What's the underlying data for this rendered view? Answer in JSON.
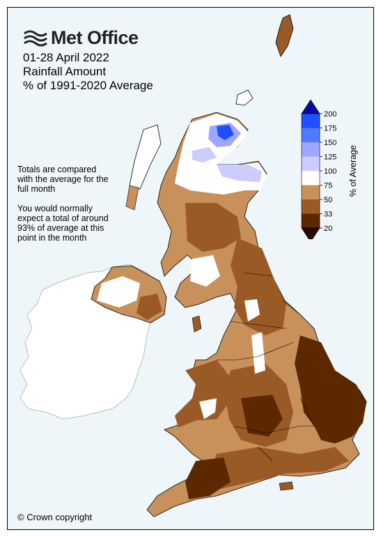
{
  "brand": {
    "logo_text": "Met Office"
  },
  "title": {
    "line1": "01-28 April 2022",
    "line2": "Rainfall Amount",
    "line3": "% of 1991-2020 Average"
  },
  "note": {
    "para1": "Totals are compared with the average for the full month",
    "para2": "You would normally expect a total of around 93% of average at this point in the month"
  },
  "copyright": "© Crown copyright",
  "legend": {
    "title": "% of Average",
    "ticks": [
      "200",
      "175",
      "150",
      "125",
      "100",
      "75",
      "50",
      "33",
      "20"
    ],
    "bands": [
      {
        "range": ">200",
        "color": "#0a0aa0"
      },
      {
        "range": "175-200",
        "color": "#1f4fff"
      },
      {
        "range": "150-175",
        "color": "#4f7bff"
      },
      {
        "range": "125-150",
        "color": "#9fa6ff"
      },
      {
        "range": "100-125",
        "color": "#ccccff"
      },
      {
        "range": "75-100",
        "color": "#ffffff"
      },
      {
        "range": "50-75",
        "color": "#c8905a"
      },
      {
        "range": "33-50",
        "color": "#9a5a26"
      },
      {
        "range": "20-33",
        "color": "#5c2800"
      },
      {
        "range": "<20",
        "color": "#2a0a00"
      }
    ]
  },
  "map": {
    "colors": {
      "sea": "#eef6fa",
      "ireland": "#ffffff",
      "border": "#000000",
      "ireland_border": "#bbbbbb"
    }
  }
}
